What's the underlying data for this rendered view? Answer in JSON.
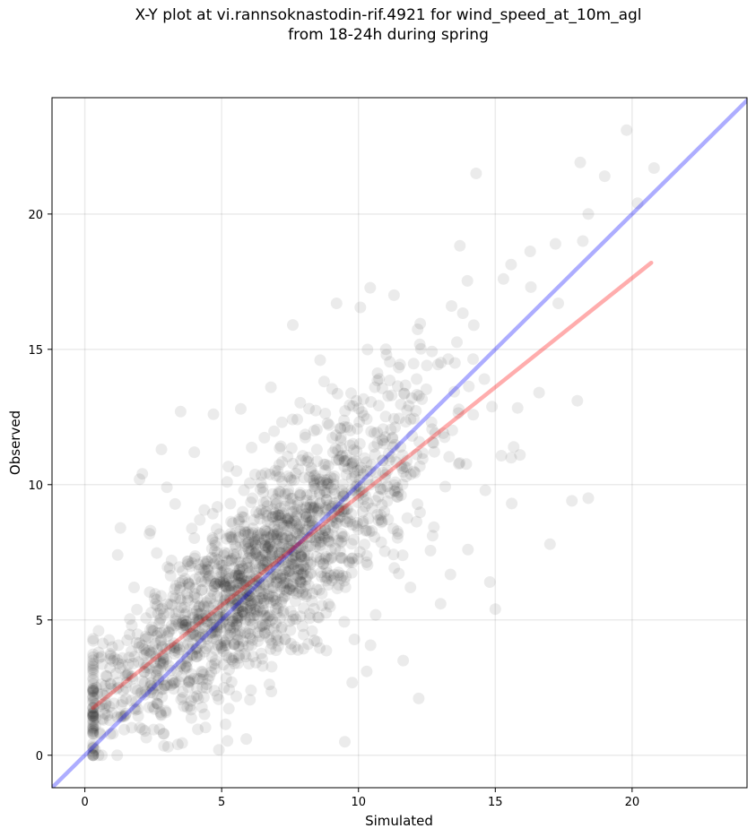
{
  "title": {
    "line1": "X-Y plot at vi.rannsoknastodin-rif.4921 for wind_speed_at_10m_agl",
    "line2": "from 18-24h during spring"
  },
  "chart_data": {
    "type": "scatter",
    "xlabel": "Simulated",
    "ylabel": "Observed",
    "xlim": [
      -1.2,
      24.2
    ],
    "ylim": [
      -1.2,
      24.3
    ],
    "x_ticks": [
      0,
      5,
      10,
      15,
      20
    ],
    "y_ticks": [
      0,
      5,
      10,
      15,
      20
    ],
    "grid": true,
    "point_color": "#000000",
    "point_alpha": 0.08,
    "points_approx_count": 1800,
    "points_description": "dense cloud of semi-transparent points concentrated along the diagonal",
    "points_sample": [
      [
        0.5,
        0.0
      ],
      [
        0.5,
        4.6
      ],
      [
        0.5,
        3.8
      ],
      [
        1.0,
        4.0
      ],
      [
        1.2,
        7.4
      ],
      [
        1.3,
        8.4
      ],
      [
        1.5,
        2.5
      ],
      [
        1.8,
        6.2
      ],
      [
        2.0,
        10.2
      ],
      [
        2.1,
        10.4
      ],
      [
        2.2,
        0.9
      ],
      [
        2.4,
        8.3
      ],
      [
        2.5,
        2.3
      ],
      [
        2.8,
        11.3
      ],
      [
        3.0,
        9.9
      ],
      [
        3.1,
        6.9
      ],
      [
        3.4,
        0.4
      ],
      [
        3.5,
        12.7
      ],
      [
        3.6,
        4.8
      ],
      [
        3.9,
        3.0
      ],
      [
        4.0,
        11.2
      ],
      [
        4.2,
        8.7
      ],
      [
        4.5,
        5.5
      ],
      [
        4.7,
        12.6
      ],
      [
        4.9,
        0.2
      ],
      [
        5.0,
        4.0
      ],
      [
        5.2,
        10.1
      ],
      [
        5.5,
        6.1
      ],
      [
        5.7,
        12.8
      ],
      [
        5.9,
        0.6
      ],
      [
        6.0,
        5.9
      ],
      [
        6.2,
        6.5
      ],
      [
        6.5,
        3.3
      ],
      [
        6.8,
        13.6
      ],
      [
        7.0,
        7.8
      ],
      [
        7.3,
        9.2
      ],
      [
        7.6,
        15.9
      ],
      [
        7.9,
        10.9
      ],
      [
        8.2,
        8.5
      ],
      [
        8.6,
        14.6
      ],
      [
        8.9,
        6.3
      ],
      [
        9.2,
        16.7
      ],
      [
        9.5,
        0.5
      ],
      [
        9.7,
        12.0
      ],
      [
        10.0,
        9.6
      ],
      [
        10.3,
        3.1
      ],
      [
        10.6,
        13.6
      ],
      [
        11.0,
        15.0
      ],
      [
        11.3,
        17.0
      ],
      [
        11.6,
        10.6
      ],
      [
        11.9,
        6.2
      ],
      [
        12.2,
        2.1
      ],
      [
        12.5,
        14.4
      ],
      [
        12.8,
        11.9
      ],
      [
        13.0,
        5.6
      ],
      [
        13.4,
        16.6
      ],
      [
        13.7,
        10.8
      ],
      [
        14.0,
        7.6
      ],
      [
        14.3,
        21.5
      ],
      [
        14.6,
        13.9
      ],
      [
        14.8,
        6.4
      ],
      [
        15.0,
        5.4
      ],
      [
        15.3,
        17.6
      ],
      [
        15.6,
        9.3
      ],
      [
        15.9,
        11.1
      ],
      [
        16.3,
        17.3
      ],
      [
        16.6,
        13.4
      ],
      [
        17.0,
        7.8
      ],
      [
        17.3,
        16.7
      ],
      [
        17.8,
        9.4
      ],
      [
        18.0,
        13.1
      ],
      [
        18.2,
        19.0
      ],
      [
        18.4,
        20.0
      ],
      [
        18.4,
        9.5
      ],
      [
        19.0,
        21.4
      ],
      [
        19.8,
        23.1
      ],
      [
        20.2,
        20.4
      ],
      [
        20.8,
        21.7
      ]
    ],
    "reference_lines": [
      {
        "color": "#0000ff",
        "alpha": 0.32,
        "x": [
          -1.2,
          24.2
        ],
        "y": [
          -1.2,
          24.2
        ]
      },
      {
        "color": "#ff0000",
        "alpha": 0.32,
        "x": [
          0.3,
          20.7
        ],
        "y": [
          1.75,
          18.2
        ]
      }
    ]
  }
}
